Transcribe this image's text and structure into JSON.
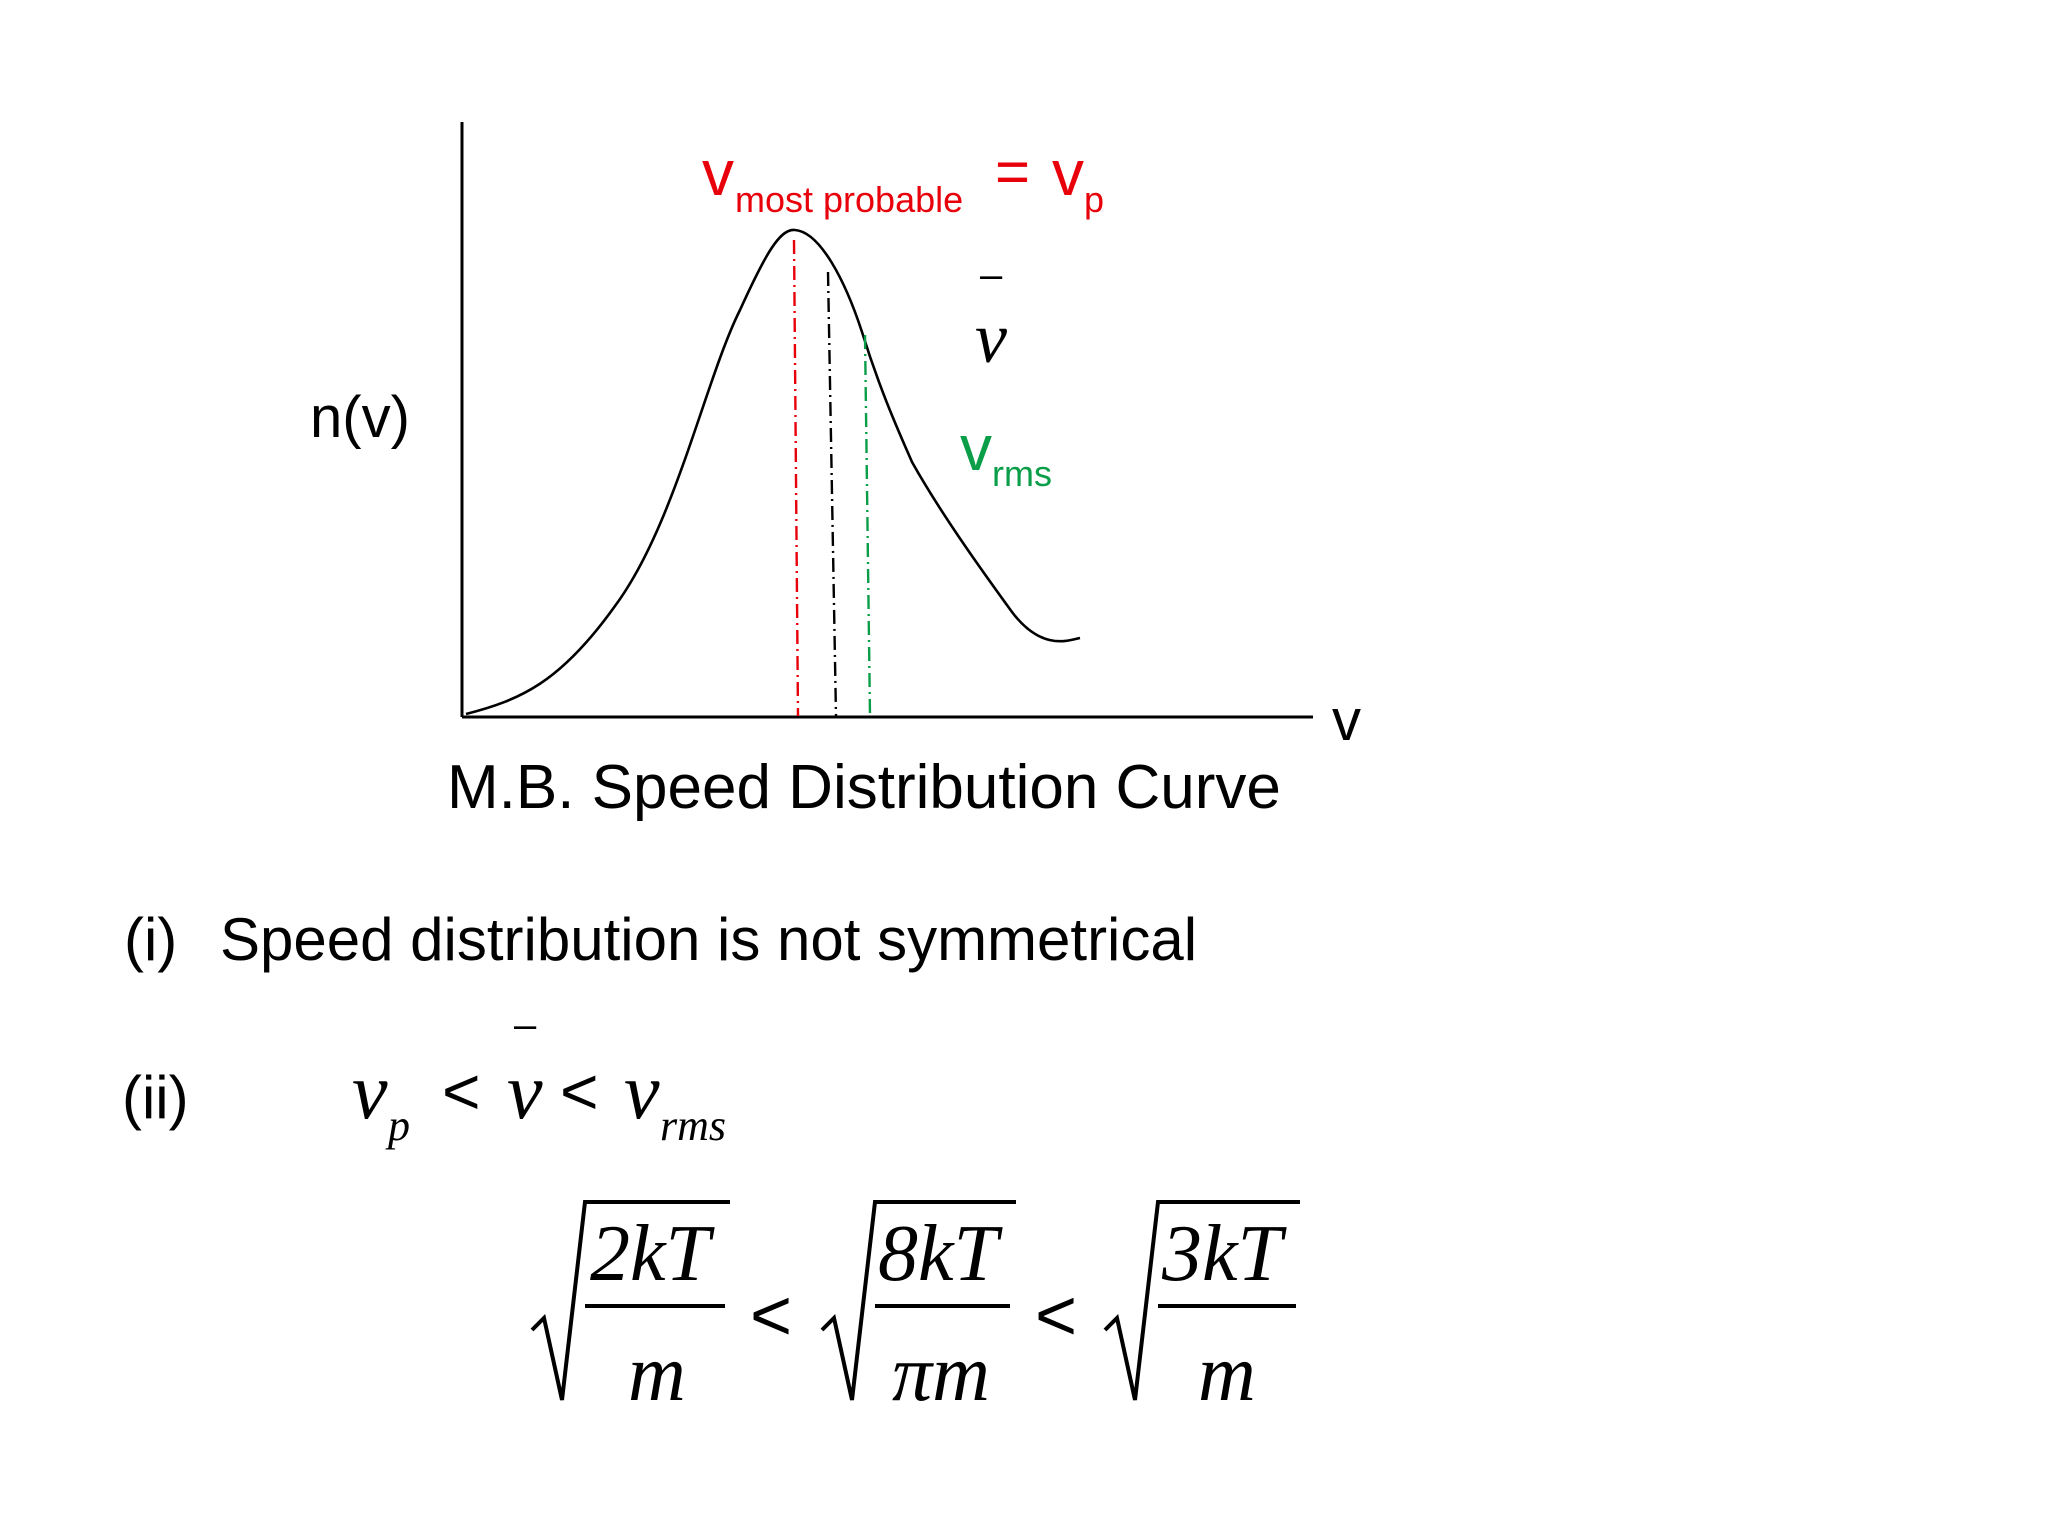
{
  "colors": {
    "ink": "#000000",
    "most_probable": "#e8000b",
    "rms": "#0a9e48",
    "mean": "#000000",
    "background": "#ffffff"
  },
  "graph": {
    "y_axis_label": "n(v)",
    "x_axis_label": "v",
    "caption": "M.B. Speed Distribution Curve",
    "vp_label": {
      "v": "v",
      "sub": "most probable",
      "equals": "=",
      "v2": "v",
      "sub2": "p"
    },
    "mean_label": {
      "bar": "–",
      "v": "v"
    },
    "rms_label": {
      "v": "v",
      "sub": "rms"
    }
  },
  "points": {
    "i": {
      "marker": "(i)",
      "text": "Speed distribution is not symmetrical"
    },
    "ii": {
      "marker": "(ii)",
      "v1": "v",
      "v1_sub": "p",
      "lt1": "<",
      "bar": "–",
      "v2": "v",
      "lt2": "<",
      "v3": "v",
      "v3_sub": "rms"
    }
  },
  "formula": {
    "f1_num": "2kT",
    "f1_den": "m",
    "lt1": "<",
    "f2_num": "8kT",
    "f2_den": "πm",
    "lt2": "<",
    "f3_num": "3kT",
    "f3_den": "m"
  }
}
